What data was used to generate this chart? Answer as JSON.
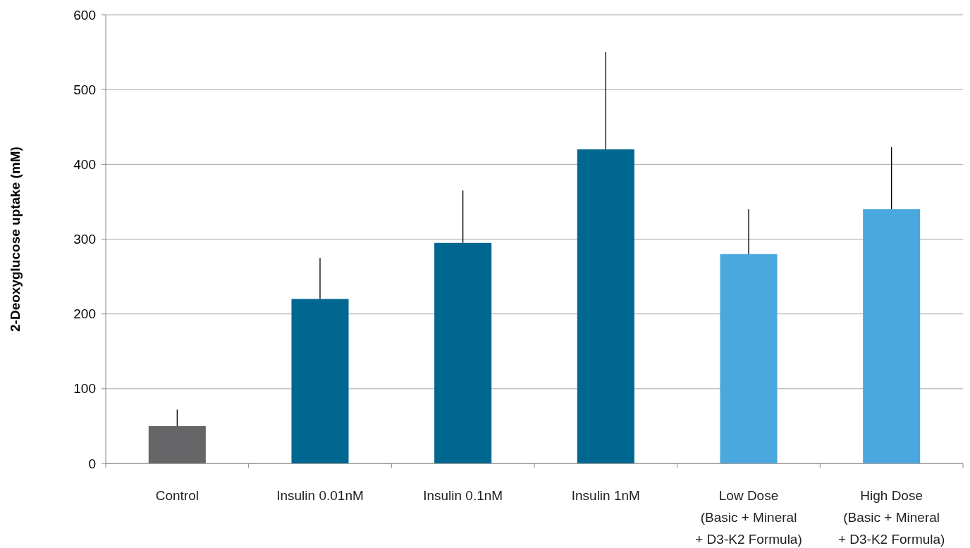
{
  "chart_data": {
    "type": "bar",
    "ylabel": "2-Deoxyglucose uptake (mM)",
    "categories": [
      "Control",
      "Insulin 0.01nM",
      "Insulin 0.1nM",
      "Insulin 1nM",
      "Low Dose\n(Basic + Mineral\n+ D3-K2 Formula)",
      "High Dose\n(Basic + Mineral\n+ D3-K2 Formula)"
    ],
    "values": [
      50,
      220,
      295,
      420,
      280,
      340
    ],
    "colors": [
      "#666668",
      "#006890",
      "#006890",
      "#006890",
      "#4aa8de",
      "#4aa8de"
    ],
    "errors": [
      [
        50,
        72
      ],
      [
        220,
        275
      ],
      [
        295,
        365
      ],
      [
        420,
        550
      ],
      [
        280,
        340
      ],
      [
        340,
        423
      ]
    ],
    "ylim": [
      0,
      600
    ],
    "yticks": [
      0,
      100,
      200,
      300,
      400,
      500,
      600
    ],
    "grid": "y"
  }
}
